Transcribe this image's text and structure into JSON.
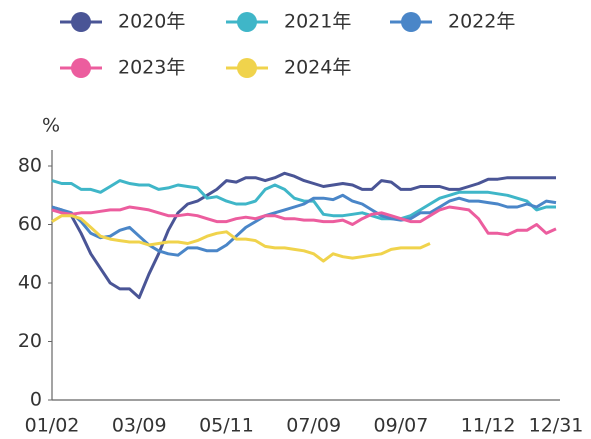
{
  "chart_data": {
    "type": "line",
    "y_label": "%",
    "categories": [
      "01/02",
      null,
      null,
      null,
      null,
      null,
      null,
      null,
      null,
      "03/09",
      null,
      null,
      null,
      null,
      null,
      null,
      null,
      null,
      "05/11",
      null,
      null,
      null,
      null,
      null,
      null,
      null,
      null,
      "07/09",
      null,
      null,
      null,
      null,
      null,
      null,
      null,
      null,
      "09/07",
      null,
      null,
      null,
      null,
      null,
      null,
      null,
      null,
      "11/12",
      null,
      null,
      null,
      null,
      null,
      null,
      "12/31"
    ],
    "ylim": [
      0,
      80
    ],
    "yticks": [
      0,
      20,
      40,
      60,
      80
    ],
    "legend": "top",
    "series": [
      {
        "name": "2020年",
        "color": "#4a5596",
        "values": [
          66,
          65,
          63,
          57,
          50,
          45,
          40,
          38,
          38,
          35,
          43,
          50,
          58,
          64,
          67,
          68,
          70,
          72,
          75,
          74.5,
          76,
          76,
          75,
          76,
          77.5,
          76.5,
          75,
          74,
          73,
          73.5,
          74,
          73.5,
          72,
          72,
          75,
          74.5,
          72,
          72,
          73,
          73,
          73,
          72,
          72,
          73,
          74,
          75.5,
          75.5,
          76,
          76,
          76,
          76,
          76,
          76
        ]
      },
      {
        "name": "2021年",
        "color": "#3fb6c8",
        "values": [
          75,
          74,
          74,
          72,
          72,
          71,
          73,
          75,
          74,
          73.5,
          73.5,
          72,
          72.5,
          73.5,
          73,
          72.5,
          69,
          69.5,
          68,
          67,
          67,
          68,
          72,
          73.5,
          72,
          69,
          68,
          68,
          63.5,
          63,
          63,
          63.5,
          64,
          63,
          62,
          62,
          62,
          63,
          65,
          67,
          69,
          70,
          71,
          71,
          71,
          71,
          70.5,
          70,
          69,
          68,
          65,
          66,
          66
        ]
      },
      {
        "name": "2022年",
        "color": "#4a86c8",
        "values": [
          66,
          65,
          64,
          61,
          57,
          55.5,
          56,
          58,
          59,
          56,
          53,
          51,
          50,
          49.5,
          52,
          52,
          51,
          51,
          53,
          56,
          59,
          61,
          63,
          64,
          65,
          66,
          67,
          69,
          69,
          68.5,
          70,
          68,
          67,
          65,
          63,
          62,
          61.5,
          62,
          64,
          64,
          66,
          68,
          69,
          68,
          68,
          67.5,
          67,
          66,
          66,
          67,
          66,
          68,
          67.5
        ]
      },
      {
        "name": "2023年",
        "color": "#ec5d9e",
        "values": [
          65,
          64,
          63.5,
          64,
          64,
          64.5,
          65,
          65,
          66,
          65.5,
          65,
          64,
          63,
          63,
          63.5,
          63,
          62,
          61,
          61,
          62,
          62.5,
          62,
          63,
          63,
          62,
          62,
          61.5,
          61.5,
          61,
          61,
          61.5,
          60,
          62,
          63.5,
          64,
          63,
          62,
          61,
          61,
          63,
          65,
          66,
          65.5,
          65,
          62,
          57,
          57,
          56.5,
          58,
          58,
          60,
          57,
          58.5
        ]
      },
      {
        "name": "2024年",
        "color": "#f0d34c",
        "values": [
          61,
          63,
          63,
          62,
          59,
          56,
          55,
          54.5,
          54,
          54,
          53,
          53.5,
          54,
          54,
          53.5,
          54.5,
          56,
          57,
          57.5,
          55,
          55,
          54.5,
          52.5,
          52,
          52,
          51.5,
          51,
          50,
          47.5,
          50,
          49,
          48.5,
          49,
          49.5,
          50,
          51.5,
          52,
          52,
          52,
          53.5,
          null,
          null,
          null,
          null,
          null,
          null,
          null,
          null,
          null,
          null,
          null,
          null,
          null
        ]
      }
    ]
  }
}
